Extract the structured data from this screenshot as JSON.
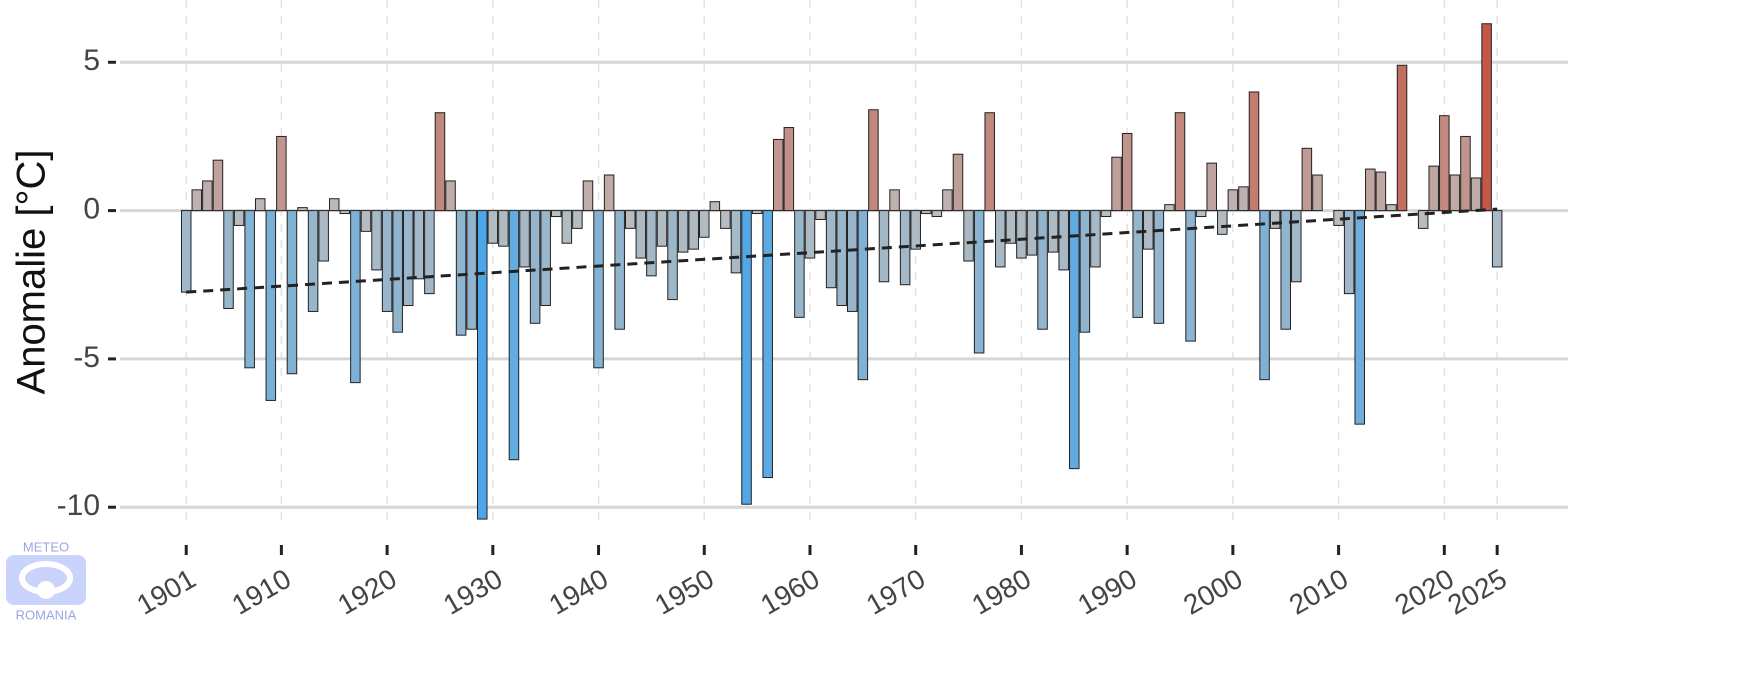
{
  "chart_data": {
    "type": "bar",
    "ylabel": "Anomalie [°C]",
    "logo": {
      "top": "METEO",
      "bottom": "ROMANIA"
    },
    "x": [
      1901,
      1902,
      1903,
      1904,
      1905,
      1906,
      1907,
      1908,
      1909,
      1910,
      1911,
      1912,
      1913,
      1914,
      1915,
      1916,
      1917,
      1918,
      1919,
      1920,
      1921,
      1922,
      1923,
      1924,
      1925,
      1926,
      1927,
      1928,
      1929,
      1930,
      1931,
      1932,
      1933,
      1934,
      1935,
      1936,
      1937,
      1938,
      1939,
      1940,
      1941,
      1942,
      1943,
      1944,
      1945,
      1946,
      1947,
      1948,
      1949,
      1950,
      1951,
      1952,
      1953,
      1954,
      1955,
      1956,
      1957,
      1958,
      1959,
      1960,
      1961,
      1962,
      1963,
      1964,
      1965,
      1966,
      1967,
      1968,
      1969,
      1970,
      1971,
      1972,
      1973,
      1974,
      1975,
      1976,
      1977,
      1978,
      1979,
      1980,
      1981,
      1982,
      1983,
      1984,
      1985,
      1986,
      1987,
      1988,
      1989,
      1990,
      1991,
      1992,
      1993,
      1994,
      1995,
      1996,
      1997,
      1998,
      1999,
      2000,
      2001,
      2002,
      2003,
      2004,
      2005,
      2006,
      2007,
      2008,
      2009,
      2010,
      2011,
      2012,
      2013,
      2014,
      2015,
      2016,
      2017,
      2018,
      2019,
      2020,
      2021,
      2022,
      2023,
      2024,
      2025
    ],
    "values": [
      -2.75,
      0.7,
      1.0,
      1.7,
      -3.3,
      -0.5,
      -5.3,
      0.4,
      -6.4,
      2.5,
      -5.5,
      0.1,
      -3.4,
      -1.7,
      0.4,
      -0.1,
      -5.8,
      -0.7,
      -2.0,
      -3.4,
      -4.1,
      -3.2,
      -2.3,
      -2.8,
      3.3,
      1.0,
      -4.2,
      -4.0,
      -10.4,
      -1.1,
      -1.2,
      -8.4,
      -1.9,
      -3.8,
      -3.2,
      -0.2,
      -1.1,
      -0.6,
      1.0,
      -5.3,
      1.2,
      -4.0,
      -0.6,
      -1.6,
      -2.2,
      -1.2,
      -3.0,
      -1.4,
      -1.3,
      -0.9,
      0.3,
      -0.6,
      -2.1,
      -9.9,
      -0.1,
      -9.0,
      2.4,
      2.8,
      -3.6,
      -1.6,
      -0.3,
      -2.6,
      -3.2,
      -3.4,
      -5.7,
      3.4,
      -2.4,
      0.7,
      -2.5,
      -1.3,
      -0.1,
      -0.2,
      0.7,
      1.9,
      -1.7,
      -4.8,
      3.3,
      -1.9,
      -1.1,
      -1.6,
      -1.5,
      -4.0,
      -1.4,
      -2.0,
      -8.7,
      -4.1,
      -1.9,
      -0.2,
      1.8,
      2.6,
      -3.6,
      -1.3,
      -3.8,
      0.2,
      3.3,
      -4.4,
      -0.2,
      1.6,
      -0.8,
      0.7,
      0.8,
      4.0,
      -5.7,
      -0.6,
      -4.0,
      -2.4,
      2.1,
      1.2,
      0.0,
      -0.5,
      -2.8,
      -7.2,
      1.4,
      1.3,
      0.2,
      4.9,
      0.0,
      -0.6,
      1.5,
      3.2,
      1.2,
      2.5,
      1.1,
      6.3,
      -1.9
    ],
    "colors": {
      "low": "#4aa7ea",
      "mid": "#bdbdbd",
      "high": "#c64a36"
    },
    "trend": {
      "x": [
        1901,
        2025
      ],
      "values": [
        -2.75,
        0.05
      ],
      "color": "#222222"
    },
    "xlim": [
      1893.6,
      2031.7
    ],
    "xticks": [
      1901,
      1910,
      1920,
      1930,
      1940,
      1950,
      1960,
      1970,
      1980,
      1990,
      2000,
      2010,
      2020,
      2025
    ],
    "ylim": [
      -10.6,
      7.1
    ],
    "yticks": [
      -10,
      -5,
      0,
      5
    ],
    "grid": true
  }
}
